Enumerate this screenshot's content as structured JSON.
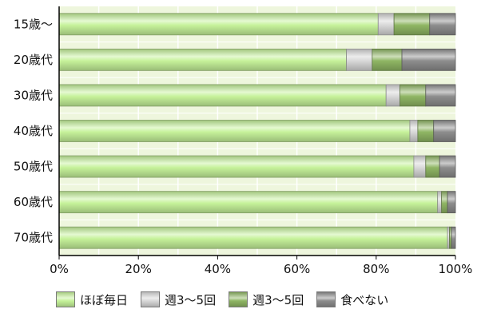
{
  "chart_data": {
    "type": "bar",
    "orientation": "horizontal",
    "stacked": true,
    "title": "",
    "xlabel": "",
    "ylabel": "",
    "xlim": [
      0,
      100
    ],
    "x_ticks": [
      "0%",
      "20%",
      "40%",
      "60%",
      "80%",
      "100%"
    ],
    "categories": [
      "15歳～",
      "20歳代",
      "30歳代",
      "40歳代",
      "50歳代",
      "60歳代",
      "70歳代"
    ],
    "series": [
      {
        "name": "ほぼ毎日",
        "values": [
          80.5,
          72.5,
          82.5,
          88.5,
          89.5,
          95.5,
          98.0
        ],
        "color": "#c6f29a"
      },
      {
        "name": "週3～5回",
        "values": [
          4.0,
          6.5,
          3.5,
          2.0,
          3.0,
          1.0,
          0.5
        ],
        "color": "#d8d8d8"
      },
      {
        "name": "週3～5回",
        "values": [
          9.0,
          7.5,
          6.5,
          4.0,
          3.5,
          1.5,
          0.5
        ],
        "color": "#8fb664"
      },
      {
        "name": "食べない",
        "values": [
          6.5,
          13.5,
          7.5,
          5.5,
          4.0,
          2.0,
          1.0
        ],
        "color": "#8d8d8d"
      }
    ],
    "grid": true,
    "legend_position": "bottom",
    "plot_background": "#eef6dd"
  }
}
